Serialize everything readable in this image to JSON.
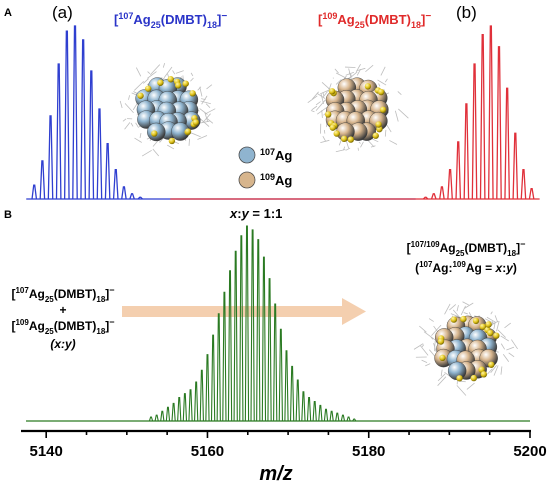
{
  "panels": {
    "a_label": "A",
    "b_label": "B"
  },
  "panel_a": {
    "left_tag": "(a)",
    "right_tag": "(b)",
    "formula_107": {
      "open": "[",
      "iso": "107",
      "elem": "Ag",
      "sub1": "25",
      "mid": "(DMBT)",
      "sub2": "18",
      "close": "]",
      "charge": "−"
    },
    "formula_109": {
      "open": "[",
      "iso": "109",
      "elem": "Ag",
      "sub1": "25",
      "mid": "(DMBT)",
      "sub2": "18",
      "close": "]",
      "charge": "−"
    },
    "legend": [
      {
        "iso": "107",
        "elem": "Ag",
        "color": "#8fb4cf"
      },
      {
        "iso": "109",
        "elem": "Ag",
        "color": "#d7b58d"
      }
    ]
  },
  "panel_b": {
    "ratio": {
      "x": "x",
      "sep": ":",
      "y": "y",
      "value": " = 1:1"
    },
    "mix_text": {
      "f1": {
        "open": "[",
        "iso": "107",
        "elem": "Ag",
        "sub1": "25",
        "mid": "(DMBT)",
        "sub2": "18",
        "close": "]",
        "charge": "−"
      },
      "plus": "+",
      "f2": {
        "open": "[",
        "iso": "109",
        "elem": "Ag",
        "sub1": "25",
        "mid": "(DMBT)",
        "sub2": "18",
        "close": "]",
        "charge": "−"
      },
      "xy": "(x:y)"
    },
    "product": {
      "line1": {
        "open": "[",
        "iso": "107/109",
        "elem": "Ag",
        "sub1": "25",
        "mid": "(DMBT)",
        "sub2": "18",
        "close": "]",
        "charge": "−"
      },
      "line2": {
        "open": "(",
        "iso1": "107",
        "elem1": "Ag:",
        "iso2": "109",
        "elem2": "Ag = ",
        "x": "x",
        "sep": ":",
        "y": "y",
        "close": ")"
      }
    }
  },
  "chart_data": [
    {
      "type": "line",
      "panel": "A",
      "title": "",
      "xlabel": "",
      "ylabel": "",
      "grid": false,
      "series": [
        {
          "name": "[107Ag25(DMBT)18]−",
          "color": "#2f3fd0",
          "peaks_x": [
            5136.5,
            5137.5,
            5138.5,
            5139.5,
            5140.5,
            5141.5,
            5142.5,
            5143.5,
            5144.5,
            5145.5,
            5146.5,
            5147.5,
            5148.5,
            5149.5
          ],
          "peaks_y": [
            0.08,
            0.22,
            0.48,
            0.78,
            0.97,
            1.0,
            0.92,
            0.74,
            0.52,
            0.32,
            0.17,
            0.07,
            0.03,
            0.01
          ]
        },
        {
          "name": "[109Ag25(DMBT)18]−",
          "color": "#e0303a",
          "peaks_x": [
            5184.5,
            5185.5,
            5186.5,
            5187.5,
            5188.5,
            5189.5,
            5190.5,
            5191.5,
            5192.5,
            5193.5,
            5194.5,
            5195.5,
            5196.5,
            5197.5
          ],
          "peaks_y": [
            0.01,
            0.03,
            0.07,
            0.17,
            0.33,
            0.55,
            0.78,
            0.95,
            1.0,
            0.88,
            0.64,
            0.38,
            0.17,
            0.06
          ]
        }
      ],
      "xlim": [
        5135,
        5200
      ]
    },
    {
      "type": "line",
      "panel": "B",
      "title": "",
      "xlabel": "m/z",
      "ylabel": "",
      "grid": false,
      "xlim": [
        5137,
        5200
      ],
      "xticks": [
        5140,
        5160,
        5180,
        5200
      ],
      "xtick_labels": [
        "5140",
        "5160",
        "5180",
        "5200"
      ],
      "series": [
        {
          "name": "",
          "color": "#2a7a22",
          "peaks_x": [
            5153.0,
            5153.7,
            5154.4,
            5155.1,
            5155.8,
            5156.5,
            5157.2,
            5157.9,
            5158.6,
            5159.3,
            5160.0,
            5160.7,
            5161.4,
            5162.1,
            5162.8,
            5163.5,
            5164.2,
            5164.9,
            5165.6,
            5166.3,
            5167.0,
            5167.7,
            5168.4,
            5169.1,
            5169.8,
            5170.5,
            5171.2,
            5171.9,
            5172.6,
            5173.3,
            5174.0,
            5174.7,
            5175.4,
            5176.1,
            5176.8,
            5177.5,
            5178.2
          ],
          "peaks_y": [
            0.02,
            0.03,
            0.05,
            0.07,
            0.09,
            0.12,
            0.14,
            0.16,
            0.2,
            0.26,
            0.34,
            0.44,
            0.55,
            0.66,
            0.77,
            0.87,
            0.95,
            1.0,
            0.98,
            0.93,
            0.84,
            0.73,
            0.6,
            0.47,
            0.36,
            0.28,
            0.21,
            0.15,
            0.12,
            0.1,
            0.08,
            0.06,
            0.05,
            0.04,
            0.03,
            0.02,
            0.01
          ]
        }
      ]
    }
  ]
}
